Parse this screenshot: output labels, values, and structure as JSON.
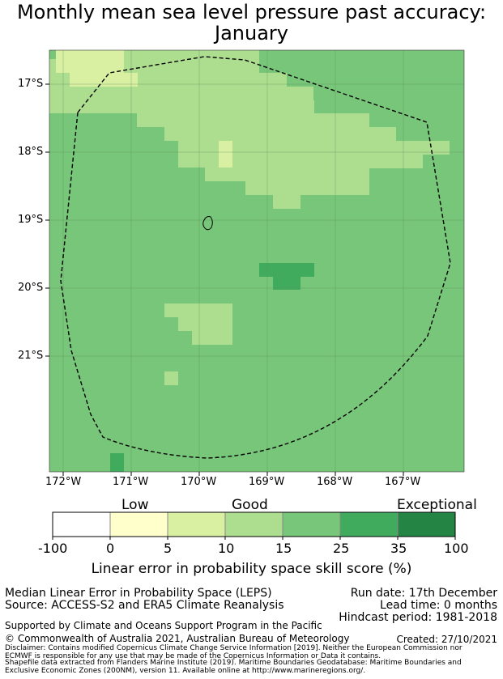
{
  "title": {
    "line1": "Monthly mean sea level pressure past accuracy:",
    "line2": "January"
  },
  "map": {
    "lat_labels": [
      "17°S",
      "18°S",
      "19°S",
      "20°S",
      "21°S"
    ],
    "lon_labels": [
      "172°W",
      "171°W",
      "170°W",
      "169°W",
      "168°W",
      "167°W"
    ],
    "bounds": {
      "lon_min": -172.2,
      "lon_max": -166.1,
      "lat_max": -16.5,
      "lat_min": -22.7
    },
    "gridlines": true,
    "eez_boundary": "dashed line (maritime EEZ)",
    "island": "Niue"
  },
  "legend": {
    "category_labels": [
      "Low",
      "Good",
      "Exceptional"
    ],
    "ticks": [
      "-100",
      "0",
      "5",
      "10",
      "15",
      "25",
      "35",
      "100"
    ],
    "colors": [
      "#ffffff",
      "#ffffcc",
      "#d9f0a3",
      "#addd8e",
      "#78c679",
      "#41ab5d",
      "#238443"
    ],
    "label": "Linear error in probability space skill score (%)"
  },
  "info": {
    "metric": "Median Linear Error in Probability Space (LEPS)",
    "source": "Source: ACCESS-S2 and ERA5 Climate Reanalysis",
    "run_date": "Run date: 17th December",
    "lead_time": "Lead time: 0 months",
    "hindcast": "Hindcast period: 1981-2018",
    "support": "Supported by Climate and Oceans Support Program in the Pacific",
    "copyright": "© Commonwealth of Australia 2021, Australian Bureau of Meteorology",
    "created": "Created: 27/10/2021",
    "disclaimer1": "Disclaimer: Contains modified Copernicus Climate Change Service Information [2019]. Neither the European Commission nor",
    "disclaimer2": "ECMWF is responsible for any use that may be made of the Copernicus Information or Data it contains.",
    "shapefile1": "Shapefile data extracted from Flanders Marine Institute (2019). Maritime Boundaries Geodatabase: Maritime Boundaries and",
    "shapefile2": "Exclusive Economic Zones (200NM), version 11. Available online at http://www.marineregions.org/."
  }
}
